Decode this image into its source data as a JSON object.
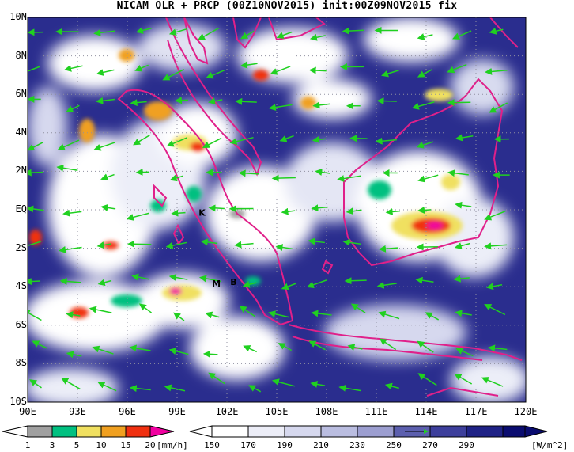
{
  "title": "NICAM OLR + PRCP (00Z10NOV2015) init:00Z09NOV2015 fix",
  "lat_labels": [
    "10N",
    "8N",
    "6N",
    "4N",
    "2N",
    "EQ",
    "2S",
    "4S",
    "6S",
    "8S",
    "10S"
  ],
  "lon_labels": [
    "90E",
    "93E",
    "96E",
    "99E",
    "102E",
    "105E",
    "108E",
    "111E",
    "114E",
    "117E",
    "120E"
  ],
  "station_markers": [
    {
      "label": "K",
      "lon": 100.3,
      "lat": -0.3
    },
    {
      "label": "M",
      "lon": 101.1,
      "lat": -4.0
    },
    {
      "label": "B",
      "lon": 102.2,
      "lat": -3.9
    }
  ],
  "precip_colorbar": {
    "ticks": [
      "1",
      "3",
      "5",
      "10",
      "15",
      "20"
    ],
    "unit": "[mm/h]",
    "colors": [
      "#a0a0a0",
      "#00c080",
      "#f0e060",
      "#f0a020",
      "#f03010",
      "#f000a0"
    ]
  },
  "olr_colorbar": {
    "ticks": [
      "150",
      "170",
      "190",
      "210",
      "230",
      "250",
      "270",
      "290"
    ],
    "unit": "[W/m^2]",
    "colors": [
      "#ffffff",
      "#ecedf7",
      "#d6d8ee",
      "#babde0",
      "#9c9ed0",
      "#7d80c0",
      "#5c5fae",
      "#3d3f9c",
      "#1f2286",
      "#0a0c70"
    ]
  },
  "colors": {
    "coastline": "#e0208a",
    "wind_vector": "#20d020",
    "land_mask_dark": "#1f2286"
  }
}
